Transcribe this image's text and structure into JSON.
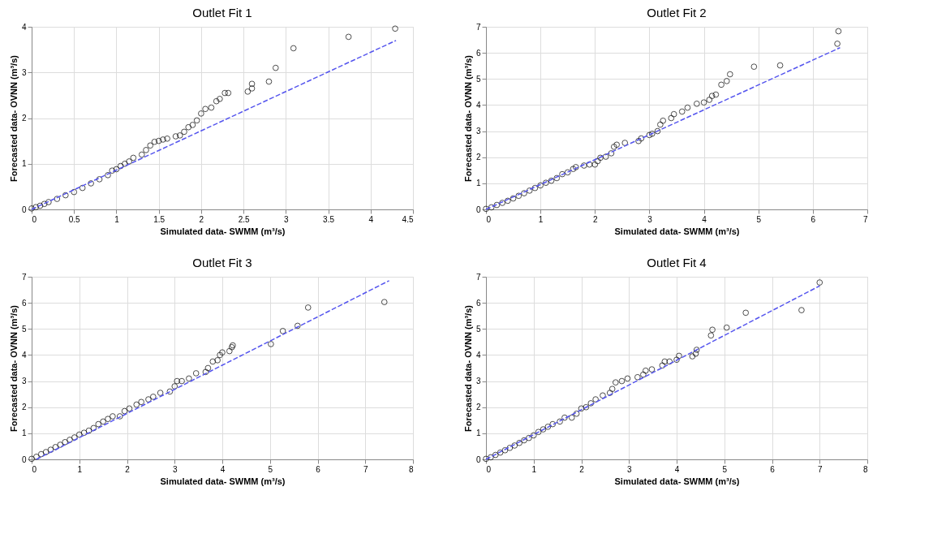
{
  "chart_data": [
    {
      "type": "scatter",
      "title": "Outlet Fit 1",
      "xlabel": "Simulated data- SWMM (m³/s)",
      "ylabel": "Forecasted data- OVNN (m³/s)",
      "xlim": [
        0,
        4.5
      ],
      "ylim": [
        0,
        4
      ],
      "xticks": [
        0,
        0.5,
        1,
        1.5,
        2,
        2.5,
        3,
        3.5,
        4,
        4.5
      ],
      "yticks": [
        0,
        1,
        2,
        3,
        4
      ],
      "grid": true,
      "marker": "circle",
      "series": [
        {
          "color": "#000000",
          "x": [
            0,
            0.05,
            0.1,
            0.15,
            0.2,
            0.3,
            0.4,
            0.5,
            0.6,
            0.7,
            0.8,
            0.9,
            0.95,
            1.0,
            1.05,
            1.1,
            1.15,
            1.2,
            1.3,
            1.35,
            1.4,
            1.45,
            1.5,
            1.55,
            1.6,
            1.7,
            1.75,
            1.8,
            1.85,
            1.9,
            1.95,
            2.0,
            2.05,
            2.12,
            2.18,
            2.22,
            2.28,
            2.32,
            2.55,
            2.6,
            2.6,
            2.8,
            2.88,
            3.09,
            3.74,
            4.29
          ],
          "values": [
            0.02,
            0.05,
            0.08,
            0.12,
            0.16,
            0.23,
            0.31,
            0.38,
            0.47,
            0.57,
            0.66,
            0.75,
            0.85,
            0.88,
            0.95,
            1.0,
            1.05,
            1.13,
            1.2,
            1.3,
            1.4,
            1.48,
            1.5,
            1.53,
            1.55,
            1.6,
            1.62,
            1.7,
            1.8,
            1.85,
            1.95,
            2.1,
            2.2,
            2.23,
            2.37,
            2.42,
            2.55,
            2.55,
            2.58,
            2.65,
            2.75,
            2.8,
            3.1,
            3.53,
            3.78,
            3.96
          ]
        },
        {
          "type": "line",
          "line_style": "dashed",
          "marker": "none",
          "color": "#5555ee",
          "x": [
            0,
            4.3
          ],
          "values": [
            0,
            3.7
          ]
        }
      ]
    },
    {
      "type": "scatter",
      "title": "Outlet Fit 2",
      "xlabel": "Simulated data- SWMM (m³/s)",
      "ylabel": "Forecasted data- OVNN (m³/s)",
      "xlim": [
        0,
        7
      ],
      "ylim": [
        0,
        7
      ],
      "xticks": [
        0,
        1,
        2,
        3,
        4,
        5,
        6,
        7
      ],
      "yticks": [
        0,
        1,
        2,
        3,
        4,
        5,
        6,
        7
      ],
      "grid": true,
      "marker": "circle",
      "series": [
        {
          "color": "#000000",
          "x": [
            0,
            0.1,
            0.2,
            0.3,
            0.4,
            0.5,
            0.6,
            0.7,
            0.8,
            0.9,
            1.0,
            1.1,
            1.2,
            1.3,
            1.4,
            1.5,
            1.6,
            1.65,
            1.8,
            1.9,
            2.0,
            2.05,
            2.1,
            2.2,
            2.3,
            2.35,
            2.4,
            2.55,
            2.8,
            2.85,
            3.0,
            3.05,
            3.15,
            3.2,
            3.25,
            3.4,
            3.45,
            3.6,
            3.7,
            3.87,
            4.0,
            4.1,
            4.15,
            4.22,
            4.32,
            4.42,
            4.48,
            4.92,
            5.4,
            6.45,
            6.47
          ],
          "values": [
            0.02,
            0.08,
            0.17,
            0.25,
            0.33,
            0.42,
            0.52,
            0.62,
            0.72,
            0.82,
            0.92,
            1.02,
            1.1,
            1.2,
            1.35,
            1.42,
            1.55,
            1.62,
            1.68,
            1.72,
            1.72,
            1.85,
            1.98,
            2.02,
            2.15,
            2.4,
            2.48,
            2.55,
            2.62,
            2.72,
            2.85,
            2.9,
            3.0,
            3.25,
            3.4,
            3.5,
            3.65,
            3.75,
            3.9,
            4.05,
            4.1,
            4.2,
            4.35,
            4.4,
            4.78,
            4.92,
            5.18,
            5.47,
            5.52,
            6.35,
            6.83
          ]
        },
        {
          "type": "line",
          "line_style": "dashed",
          "marker": "none",
          "color": "#5555ee",
          "x": [
            0,
            6.5
          ],
          "values": [
            0,
            6.2
          ]
        }
      ]
    },
    {
      "type": "scatter",
      "title": "Outlet Fit 3",
      "xlabel": "Simulated data- SWMM (m³/s)",
      "ylabel": "Forecasted data- OVNN (m³/s)",
      "xlim": [
        0,
        8
      ],
      "ylim": [
        0,
        7
      ],
      "xticks": [
        0,
        1,
        2,
        3,
        4,
        5,
        6,
        7,
        8
      ],
      "yticks": [
        0,
        1,
        2,
        3,
        4,
        5,
        6,
        7
      ],
      "grid": true,
      "marker": "circle",
      "series": [
        {
          "color": "#000000",
          "x": [
            0,
            0.1,
            0.2,
            0.3,
            0.4,
            0.5,
            0.6,
            0.7,
            0.8,
            0.9,
            1.0,
            1.1,
            1.2,
            1.3,
            1.4,
            1.5,
            1.6,
            1.7,
            1.85,
            1.95,
            2.05,
            2.2,
            2.3,
            2.45,
            2.55,
            2.7,
            2.9,
            3.0,
            3.05,
            3.15,
            3.3,
            3.45,
            3.65,
            3.7,
            3.8,
            3.9,
            3.95,
            4.0,
            4.15,
            4.2,
            4.22,
            5.02,
            5.27,
            5.58,
            5.8,
            7.4
          ],
          "values": [
            0.02,
            0.1,
            0.2,
            0.28,
            0.37,
            0.47,
            0.56,
            0.66,
            0.75,
            0.84,
            0.95,
            1.02,
            1.1,
            1.2,
            1.35,
            1.45,
            1.55,
            1.65,
            1.65,
            1.85,
            1.95,
            2.1,
            2.2,
            2.3,
            2.4,
            2.55,
            2.6,
            2.8,
            3.0,
            3.0,
            3.1,
            3.3,
            3.35,
            3.5,
            3.75,
            3.8,
            4.0,
            4.1,
            4.15,
            4.3,
            4.37,
            4.42,
            4.92,
            5.12,
            5.82,
            6.03
          ]
        },
        {
          "type": "line",
          "line_style": "dashed",
          "marker": "none",
          "color": "#5555ee",
          "x": [
            0.1,
            7.5
          ],
          "values": [
            0,
            6.85
          ]
        }
      ]
    },
    {
      "type": "scatter",
      "title": "Outlet Fit 4",
      "xlabel": "Simulated data- SWMM (m³/s)",
      "ylabel": "Forecasted data- OVNN (m³/s)",
      "xlim": [
        0,
        8
      ],
      "ylim": [
        0,
        7
      ],
      "xticks": [
        0,
        1,
        2,
        3,
        4,
        5,
        6,
        7,
        8
      ],
      "yticks": [
        0,
        1,
        2,
        3,
        4,
        5,
        6,
        7
      ],
      "grid": true,
      "marker": "circle",
      "series": [
        {
          "color": "#000000",
          "x": [
            0,
            0.1,
            0.2,
            0.3,
            0.4,
            0.5,
            0.6,
            0.7,
            0.8,
            0.9,
            1.0,
            1.1,
            1.2,
            1.3,
            1.4,
            1.55,
            1.65,
            1.8,
            1.9,
            2.0,
            2.1,
            2.2,
            2.3,
            2.45,
            2.6,
            2.65,
            2.72,
            2.85,
            2.97,
            3.18,
            3.3,
            3.35,
            3.48,
            3.7,
            3.75,
            3.85,
            4.0,
            4.05,
            4.33,
            4.4,
            4.42,
            4.72,
            4.75,
            5.05,
            5.45,
            6.62,
            7.0
          ],
          "values": [
            0.02,
            0.08,
            0.17,
            0.26,
            0.35,
            0.44,
            0.53,
            0.63,
            0.73,
            0.82,
            0.92,
            1.05,
            1.15,
            1.25,
            1.35,
            1.45,
            1.6,
            1.6,
            1.75,
            1.95,
            2.0,
            2.15,
            2.3,
            2.45,
            2.55,
            2.7,
            2.95,
            3.0,
            3.1,
            3.15,
            3.25,
            3.4,
            3.45,
            3.6,
            3.75,
            3.75,
            3.82,
            3.97,
            3.95,
            4.05,
            4.2,
            4.75,
            4.97,
            5.05,
            5.62,
            5.72,
            6.78
          ]
        },
        {
          "type": "line",
          "line_style": "dashed",
          "marker": "none",
          "color": "#5555ee",
          "x": [
            0,
            7
          ],
          "values": [
            0,
            6.65
          ]
        }
      ]
    }
  ]
}
